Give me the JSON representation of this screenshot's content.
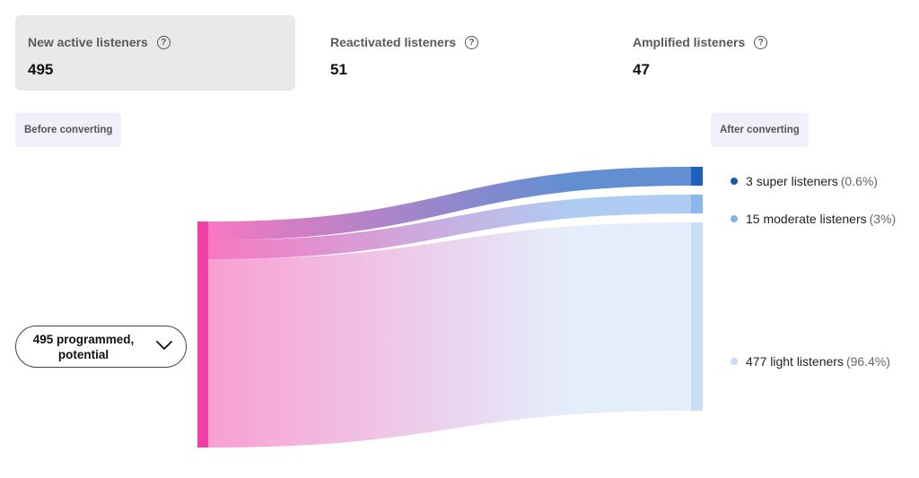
{
  "stats": [
    {
      "label": "New active listeners",
      "value": "495",
      "selected": true
    },
    {
      "label": "Reactivated listeners",
      "value": "51",
      "selected": false
    },
    {
      "label": "Amplified listeners",
      "value": "47",
      "selected": false
    }
  ],
  "help_glyph": "?",
  "before_label": "Before converting",
  "after_label": "After converting",
  "source_selector": {
    "label": "495 programmed, potential"
  },
  "chart_data": {
    "type": "sankey",
    "source": {
      "name": "495 programmed, potential",
      "value": 495,
      "color": "#f23fa5"
    },
    "targets": [
      {
        "count": "3",
        "name": "super listeners",
        "value": 3,
        "pct": "(0.6%)",
        "color": "#1e5fbf",
        "dot": "#1857b8"
      },
      {
        "count": "15",
        "name": "moderate listeners",
        "value": 15,
        "pct": "(3%)",
        "color": "#8db6ec",
        "dot": "#86b1ea"
      },
      {
        "count": "477",
        "name": "light listeners",
        "value": 477,
        "pct": "(96.4%)",
        "color": "#c9ddf7",
        "dot": "#c4daf6"
      }
    ]
  }
}
